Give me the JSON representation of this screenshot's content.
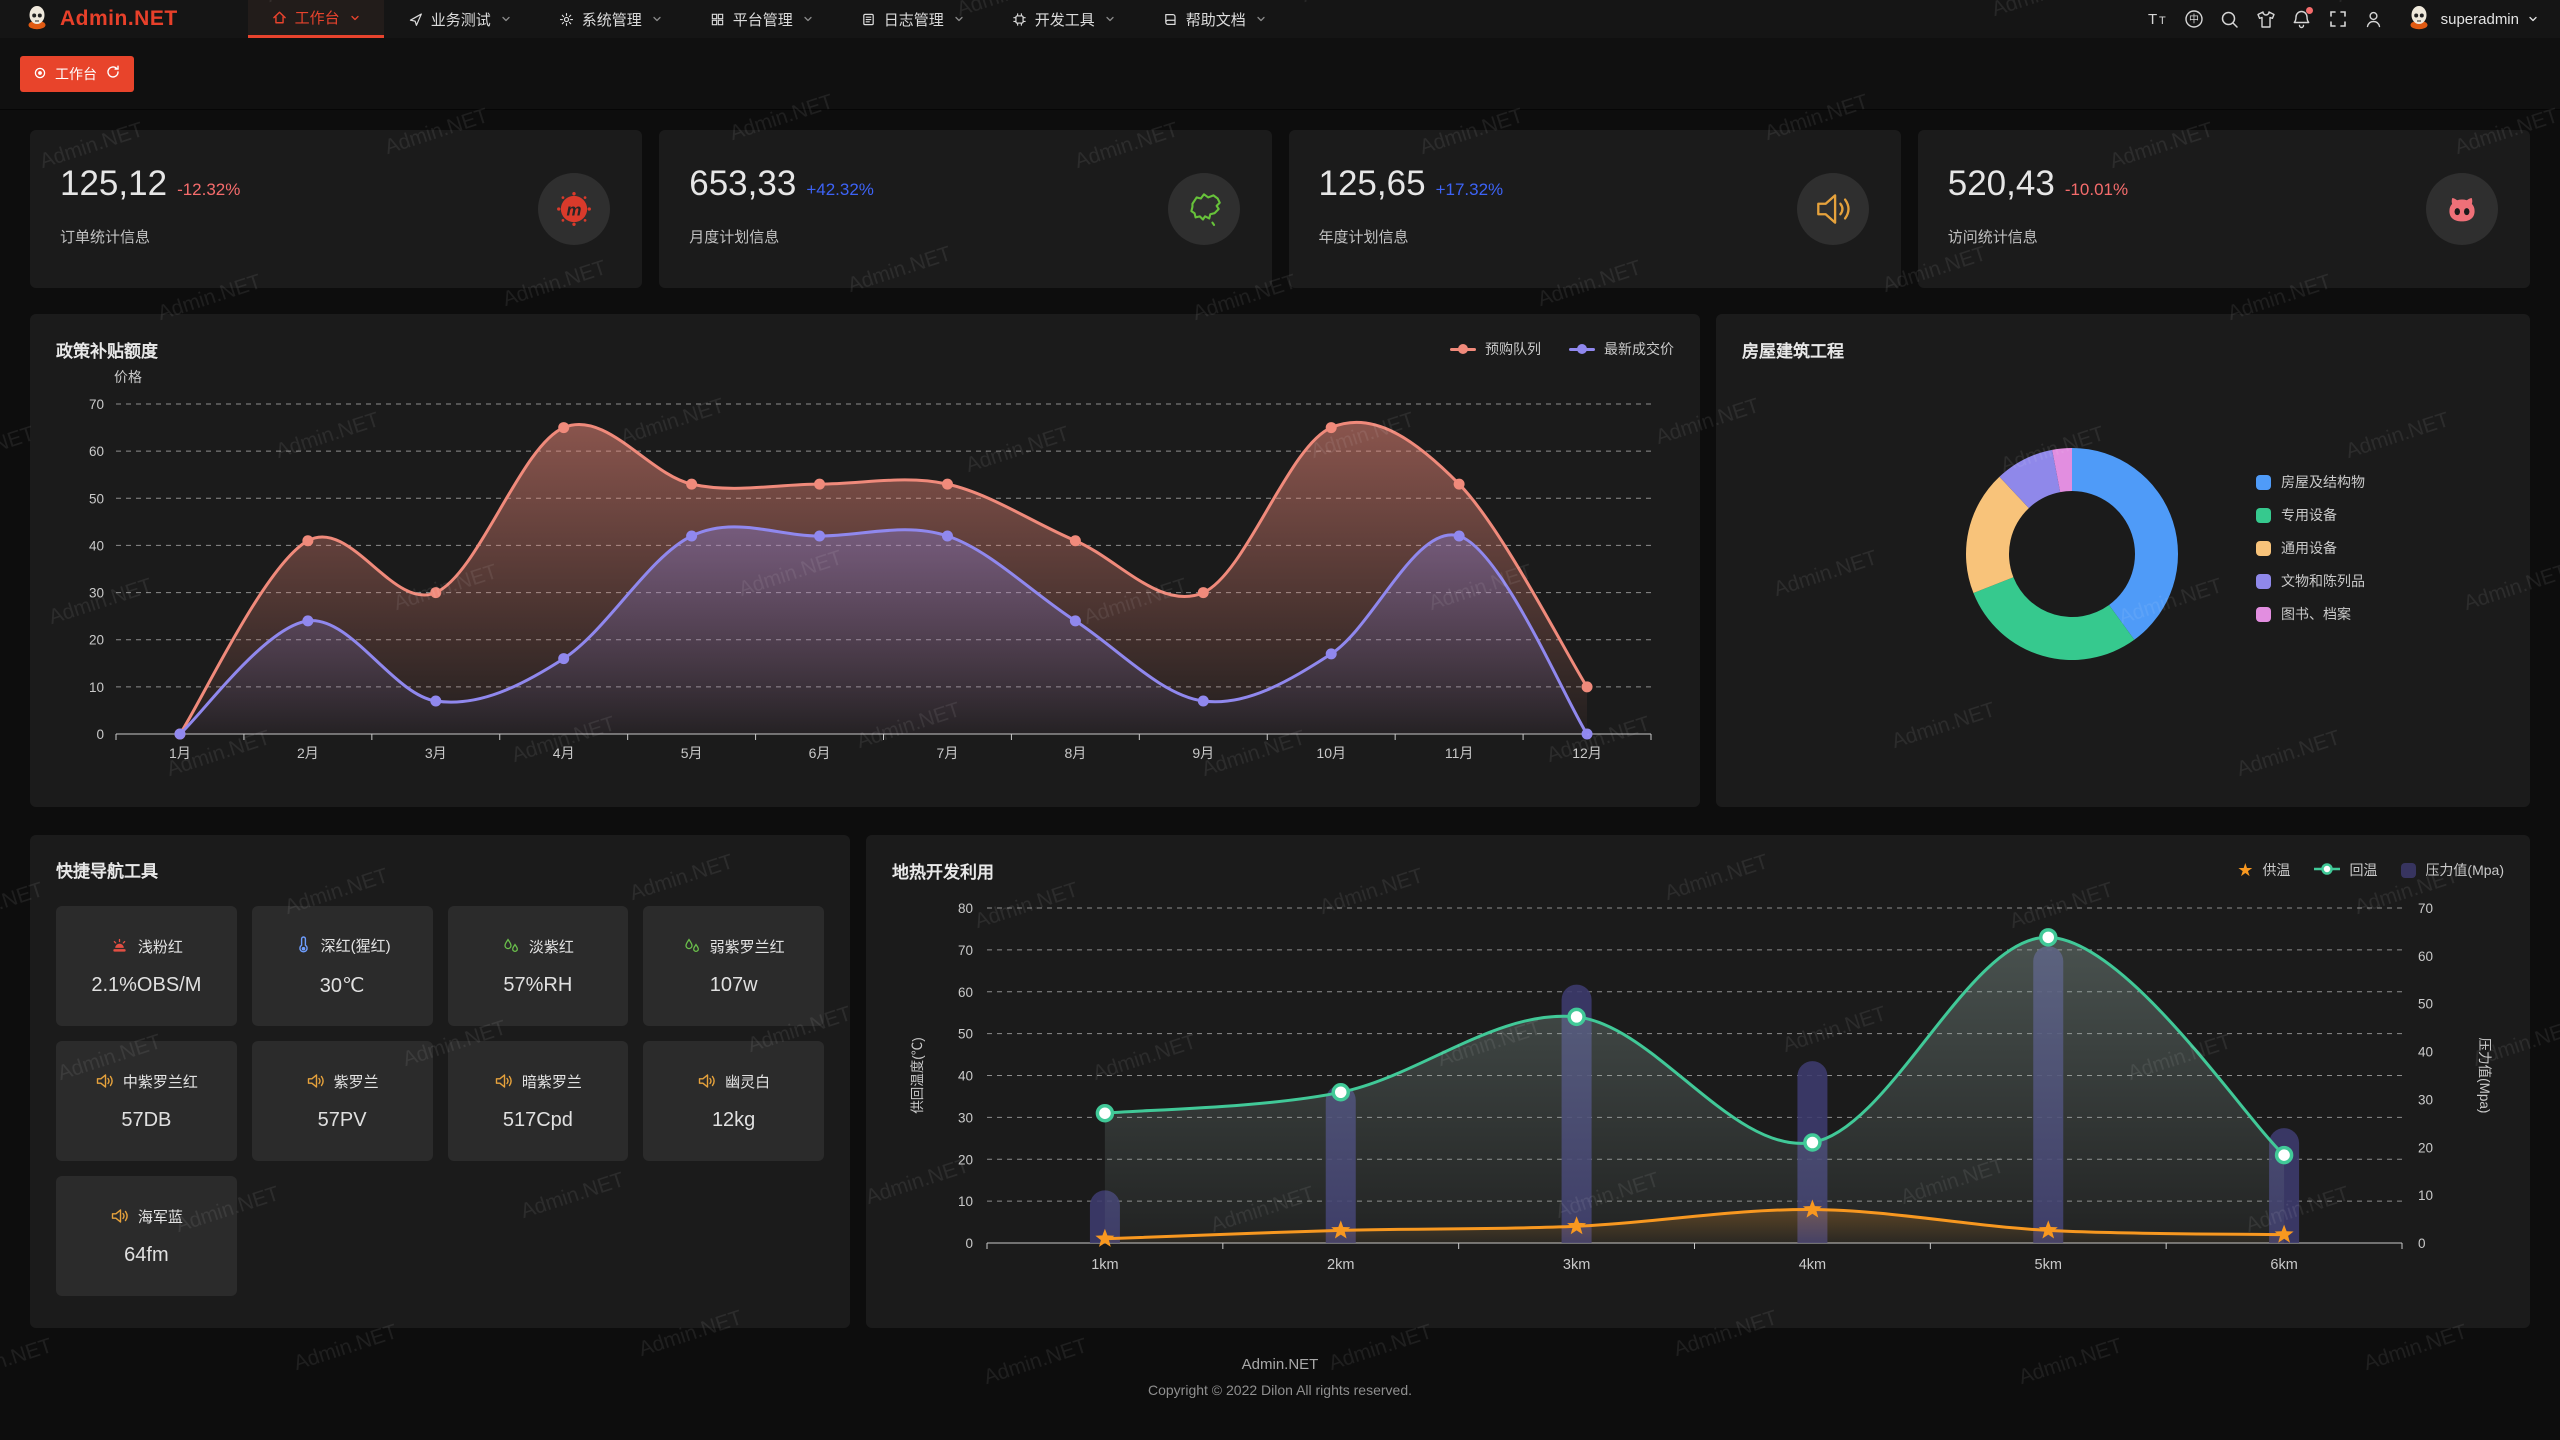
{
  "header": {
    "logo_text": "Admin.NET",
    "menu": [
      {
        "label": "工作台",
        "icon": "home",
        "active": true
      },
      {
        "label": "业务测试",
        "icon": "send",
        "active": false
      },
      {
        "label": "系统管理",
        "icon": "gear",
        "active": false
      },
      {
        "label": "平台管理",
        "icon": "grid",
        "active": false
      },
      {
        "label": "日志管理",
        "icon": "log",
        "active": false
      },
      {
        "label": "开发工具",
        "icon": "chip",
        "active": false
      },
      {
        "label": "帮助文档",
        "icon": "book",
        "active": false
      }
    ],
    "actions": [
      {
        "name": "font-size-icon",
        "icon": "fontsize",
        "badge": false
      },
      {
        "name": "language-icon",
        "icon": "language",
        "badge": false
      },
      {
        "name": "search-icon",
        "icon": "search",
        "badge": false
      },
      {
        "name": "theme-icon",
        "icon": "shirt",
        "badge": false
      },
      {
        "name": "notification-icon",
        "icon": "bell",
        "badge": true
      },
      {
        "name": "fullscreen-icon",
        "icon": "fullscreen",
        "badge": false
      },
      {
        "name": "profile-icon",
        "icon": "person",
        "badge": false
      }
    ],
    "username": "superadmin"
  },
  "tabbar": {
    "active_tab": "工作台"
  },
  "stats": [
    {
      "value": "125,12",
      "delta": "-12.32%",
      "trend": "down",
      "label": "订单统计信息",
      "icon": "meetup",
      "icon_color": "#d93a2b"
    },
    {
      "value": "653,33",
      "delta": "+42.32%",
      "trend": "up",
      "label": "月度计划信息",
      "icon": "china",
      "icon_color": "#67c23a"
    },
    {
      "value": "125,65",
      "delta": "+17.32%",
      "trend": "up",
      "label": "年度计划信息",
      "icon": "speaker",
      "icon_color": "#e6a23c"
    },
    {
      "value": "520,43",
      "delta": "-10.01%",
      "trend": "down",
      "label": "访问统计信息",
      "icon": "octocat",
      "icon_color": "#ef7078"
    }
  ],
  "chart_data": [
    {
      "type": "area",
      "title": "政策补贴额度",
      "ylabel": "价格",
      "ylim": [
        0,
        70
      ],
      "y_ticks": [
        0,
        10,
        20,
        30,
        40,
        50,
        60,
        70
      ],
      "categories": [
        "1月",
        "2月",
        "3月",
        "4月",
        "5月",
        "6月",
        "7月",
        "8月",
        "9月",
        "10月",
        "11月",
        "12月"
      ],
      "grid": "dashed",
      "legend_position": "top-right",
      "series": [
        {
          "name": "预购队列",
          "color": "#f08a7b",
          "values": [
            0,
            41,
            30,
            65,
            53,
            53,
            53,
            41,
            30,
            65,
            53,
            10
          ]
        },
        {
          "name": "最新成交价",
          "color": "#9088ee",
          "values": [
            0,
            24,
            7,
            16,
            42,
            42,
            42,
            24,
            7,
            17,
            42,
            0
          ]
        }
      ]
    },
    {
      "type": "pie",
      "title": "房屋建筑工程",
      "donut": true,
      "legend_position": "right",
      "slices": [
        {
          "name": "房屋及结构物",
          "value": 40,
          "color": "#4f9bf8"
        },
        {
          "name": "专用设备",
          "value": 29,
          "color": "#36c98e"
        },
        {
          "name": "通用设备",
          "value": 19,
          "color": "#f8c37a"
        },
        {
          "name": "文物和陈列品",
          "value": 9,
          "color": "#8f88ea"
        },
        {
          "name": "图书、档案",
          "value": 3,
          "color": "#e28ee0"
        }
      ]
    },
    {
      "type": "mixed",
      "title": "地热开发利用",
      "categories": [
        "1km",
        "2km",
        "3km",
        "4km",
        "5km",
        "6km"
      ],
      "left_axis": {
        "label": "供回温度(℃)",
        "min": 0,
        "max": 80,
        "ticks": [
          0,
          10,
          20,
          30,
          40,
          50,
          60,
          70,
          80
        ]
      },
      "right_axis": {
        "label": "压力值(Mpa)",
        "min": 0,
        "max": 70,
        "ticks": [
          0,
          10,
          20,
          30,
          40,
          50,
          60,
          70
        ]
      },
      "grid": "dashed",
      "legend_position": "top-right",
      "series": [
        {
          "name": "供温",
          "kind": "line",
          "marker": "star",
          "axis": "left",
          "color": "#f89820",
          "values": [
            1,
            3,
            4,
            8,
            3,
            2
          ]
        },
        {
          "name": "回温",
          "kind": "line",
          "marker": "circle",
          "axis": "left",
          "color": "#41c998",
          "values": [
            31,
            36,
            54,
            24,
            73,
            21
          ]
        },
        {
          "name": "压力值(Mpa)",
          "kind": "bar",
          "axis": "right",
          "color": "#3d3b6e",
          "values": [
            11,
            33,
            54,
            38,
            62,
            24
          ]
        }
      ]
    }
  ],
  "quicknav": {
    "title": "快捷导航工具",
    "items": [
      {
        "name": "浅粉红",
        "value": "2.1%OBS/M",
        "icon": "alarm",
        "color": "#e34f43"
      },
      {
        "name": "深红(猩红)",
        "value": "30℃",
        "icon": "thermo",
        "color": "#6e9eff"
      },
      {
        "name": "淡紫红",
        "value": "57%RH",
        "icon": "drops",
        "color": "#6abf4b"
      },
      {
        "name": "弱紫罗兰红",
        "value": "107w",
        "icon": "drops",
        "color": "#6abf4b"
      },
      {
        "name": "中紫罗兰红",
        "value": "57DB",
        "icon": "speaker",
        "color": "#e6a23c"
      },
      {
        "name": "紫罗兰",
        "value": "57PV",
        "icon": "speaker",
        "color": "#e6a23c"
      },
      {
        "name": "暗紫罗兰",
        "value": "517Cpd",
        "icon": "speaker",
        "color": "#e6a23c"
      },
      {
        "name": "幽灵白",
        "value": "12kg",
        "icon": "speaker",
        "color": "#e6a23c"
      },
      {
        "name": "海军蓝",
        "value": "64fm",
        "icon": "speaker",
        "color": "#e6a23c"
      }
    ]
  },
  "footer": {
    "line1": "Admin.NET",
    "line2": "Copyright © 2022 Dilon All rights reserved."
  },
  "watermark": {
    "text": "Admin.NET"
  },
  "colors": {
    "accent": "#e8432d",
    "panel": "#1b1b1b",
    "up": "#3d63f5",
    "down": "#f56c6c"
  }
}
